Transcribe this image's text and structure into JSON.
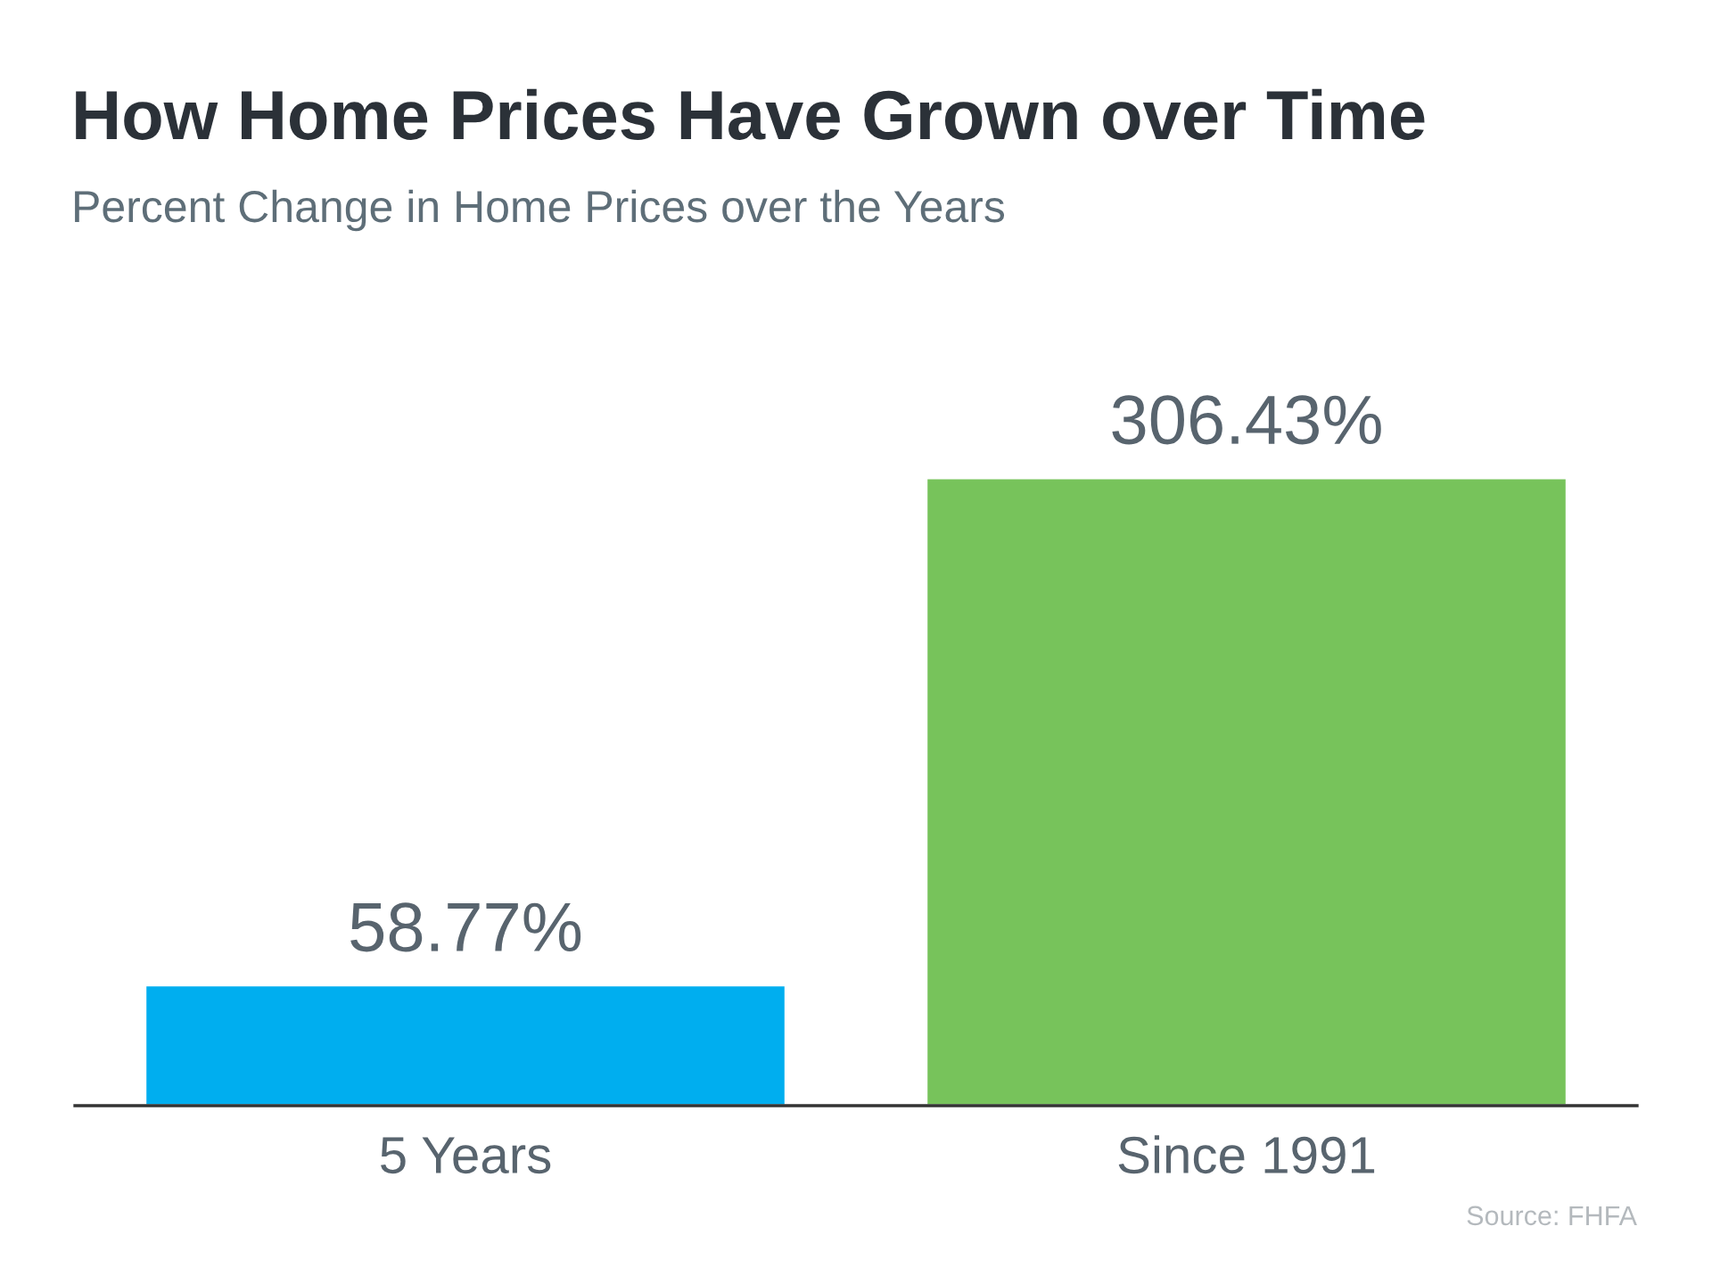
{
  "chart_data": {
    "type": "bar",
    "title": "How Home Prices Have Grown over Time",
    "subtitle": "Percent Change in Home Prices over the Years",
    "categories": [
      "5 Years",
      "Since 1991"
    ],
    "values": [
      58.77,
      306.43
    ],
    "value_labels": [
      "58.77%",
      "306.43%"
    ],
    "colors": [
      "#00aeef",
      "#77c35b"
    ],
    "annotations": [
      "Source: FHFA"
    ],
    "grid": false,
    "legend": false
  }
}
